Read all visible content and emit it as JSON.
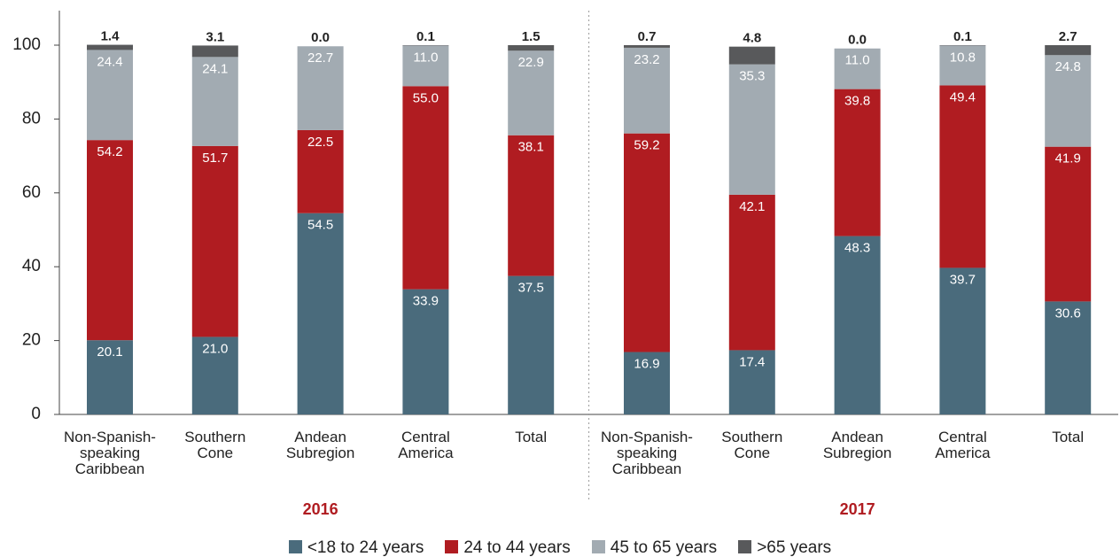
{
  "chart_data": {
    "type": "stacked_bar",
    "categories": [
      "Non-Spanish-speaking Caribbean",
      "Southern Cone",
      "Andean Subregion",
      "Central America",
      "Total",
      "Non-Spanish-speaking Caribbean",
      "Southern Cone",
      "Andean Subregion",
      "Central America",
      "Total"
    ],
    "group_labels": [
      "2016",
      "2017"
    ],
    "series": [
      {
        "name": "<18 to 24 years",
        "color": "#4a6b7c",
        "values": [
          20.1,
          21.0,
          54.5,
          33.9,
          37.5,
          16.9,
          17.4,
          48.3,
          39.7,
          30.6
        ],
        "value_labels": [
          "20.1",
          "21.0",
          "54.5",
          "33.9",
          "37.5",
          "16.9",
          "17.4",
          "48.3",
          "39.7",
          "30.6"
        ]
      },
      {
        "name": "24 to 44 years",
        "color": "#b01c21",
        "values": [
          54.2,
          51.7,
          22.5,
          55.0,
          38.1,
          59.2,
          42.1,
          39.8,
          49.4,
          41.9
        ],
        "value_labels": [
          "54.2",
          "51.7",
          "22.5",
          "55.0",
          "38.1",
          "59.2",
          "42.1",
          "39.8",
          "49.4",
          "41.9"
        ]
      },
      {
        "name": "45 to 65 years",
        "color": "#a2abb2",
        "values": [
          24.4,
          24.1,
          22.7,
          11.0,
          22.9,
          23.2,
          35.3,
          11.0,
          10.8,
          24.8
        ],
        "value_labels": [
          "24.4",
          "24.1",
          "22.7",
          "11.0",
          "22.9",
          "23.2",
          "35.3",
          "11.0",
          "10.8",
          "24.8"
        ]
      },
      {
        "name": ">65 years",
        "color": "#58595b",
        "values": [
          1.4,
          3.1,
          0.0,
          0.1,
          1.5,
          0.7,
          4.8,
          0.0,
          0.1,
          2.7
        ],
        "value_labels": [
          "1.4",
          "3.1",
          "0.0",
          "0.1",
          "1.5",
          "0.7",
          "4.8",
          "0.0",
          "0.1",
          "2.7"
        ]
      }
    ],
    "ylim": [
      0,
      100
    ],
    "yticks": [
      0,
      20,
      40,
      60,
      80,
      100
    ],
    "grid": false
  }
}
